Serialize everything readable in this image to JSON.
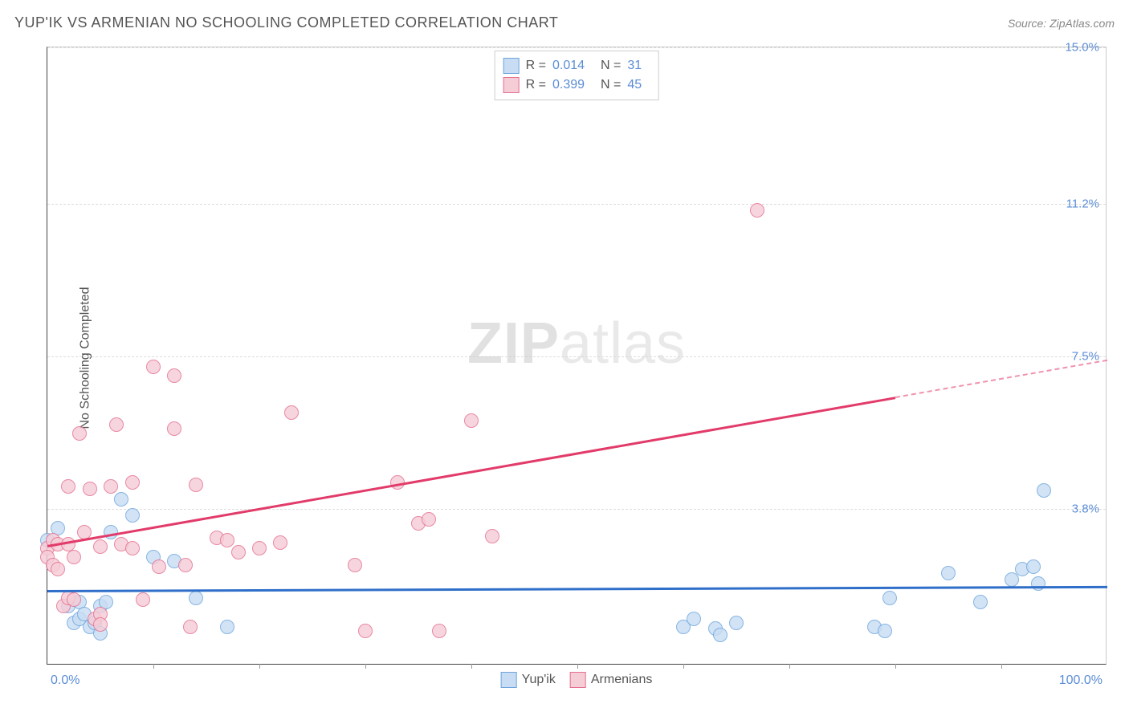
{
  "header": {
    "title": "YUP'IK VS ARMENIAN NO SCHOOLING COMPLETED CORRELATION CHART",
    "source": "Source: ZipAtlas.com"
  },
  "watermark": {
    "bold": "ZIP",
    "light": "atlas"
  },
  "chart": {
    "type": "scatter",
    "y_axis_label": "No Schooling Completed",
    "xlim": [
      0,
      100
    ],
    "ylim": [
      0,
      15
    ],
    "x_ticks": {
      "min_label": "0.0%",
      "max_label": "100.0%",
      "minor_positions_pct": [
        10,
        20,
        30,
        40,
        50,
        60,
        70,
        80,
        90
      ]
    },
    "y_gridlines": [
      {
        "value": 3.8,
        "label": "3.8%"
      },
      {
        "value": 7.5,
        "label": "7.5%"
      },
      {
        "value": 11.2,
        "label": "11.2%"
      },
      {
        "value": 15.0,
        "label": "15.0%"
      }
    ],
    "background_color": "#ffffff",
    "grid_color": "#dddddd",
    "axis_color": "#444444",
    "point_radius": 9,
    "point_border_width": 1.5,
    "series": [
      {
        "name": "Yup'ik",
        "fill": "#c8ddf3",
        "stroke": "#6ea5de",
        "trend": {
          "color": "#2f6fc9",
          "x1": 0,
          "y1": 1.8,
          "x2": 100,
          "y2": 1.9,
          "dashed": false,
          "width": 3
        },
        "points": [
          [
            0,
            3.0
          ],
          [
            1,
            3.3
          ],
          [
            2,
            1.4
          ],
          [
            2.5,
            1.0
          ],
          [
            3,
            1.5
          ],
          [
            3,
            1.1
          ],
          [
            3.5,
            1.2
          ],
          [
            4,
            0.9
          ],
          [
            4.5,
            1.0
          ],
          [
            5,
            1.4
          ],
          [
            5,
            0.75
          ],
          [
            5.5,
            1.5
          ],
          [
            6,
            3.2
          ],
          [
            7,
            4.0
          ],
          [
            8,
            3.6
          ],
          [
            10,
            2.6
          ],
          [
            12,
            2.5
          ],
          [
            14,
            1.6
          ],
          [
            17,
            0.9
          ],
          [
            60,
            0.9
          ],
          [
            61,
            1.1
          ],
          [
            63,
            0.85
          ],
          [
            63.5,
            0.7
          ],
          [
            65,
            1.0
          ],
          [
            78,
            0.9
          ],
          [
            79,
            0.8
          ],
          [
            79.5,
            1.6
          ],
          [
            85,
            2.2
          ],
          [
            88,
            1.5
          ],
          [
            91,
            2.05
          ],
          [
            92,
            2.3
          ],
          [
            93,
            2.35
          ],
          [
            93.5,
            1.95
          ],
          [
            94,
            4.2
          ]
        ]
      },
      {
        "name": "Armenians",
        "fill": "#f5cdd7",
        "stroke": "#e56f8f",
        "trend": {
          "color": "#e23b6a",
          "x1": 0,
          "y1": 2.9,
          "x2": 80,
          "y2": 6.5,
          "dashed_ext_x2": 100,
          "dashed_ext_y2": 7.4,
          "width": 2.5
        },
        "points": [
          [
            0,
            2.8
          ],
          [
            0,
            2.6
          ],
          [
            0.5,
            2.4
          ],
          [
            0.5,
            3.0
          ],
          [
            1,
            2.9
          ],
          [
            1,
            2.3
          ],
          [
            1.5,
            1.4
          ],
          [
            2,
            2.9
          ],
          [
            2,
            4.3
          ],
          [
            2,
            1.6
          ],
          [
            2.5,
            1.55
          ],
          [
            2.5,
            2.6
          ],
          [
            3,
            5.6
          ],
          [
            3.5,
            3.2
          ],
          [
            4,
            4.25
          ],
          [
            4.5,
            1.1
          ],
          [
            5,
            1.2
          ],
          [
            5,
            2.85
          ],
          [
            5,
            0.95
          ],
          [
            6,
            4.3
          ],
          [
            6.5,
            5.8
          ],
          [
            7,
            2.9
          ],
          [
            8,
            4.4
          ],
          [
            8,
            2.8
          ],
          [
            9,
            1.55
          ],
          [
            10,
            7.2
          ],
          [
            10.5,
            2.35
          ],
          [
            12,
            7.0
          ],
          [
            12,
            5.7
          ],
          [
            13,
            2.4
          ],
          [
            13.5,
            0.9
          ],
          [
            14,
            4.35
          ],
          [
            16,
            3.05
          ],
          [
            17,
            3.0
          ],
          [
            18,
            2.7
          ],
          [
            20,
            2.8
          ],
          [
            22,
            2.95
          ],
          [
            23,
            6.1
          ],
          [
            29,
            2.4
          ],
          [
            30,
            0.8
          ],
          [
            33,
            4.4
          ],
          [
            35,
            3.4
          ],
          [
            36,
            3.5
          ],
          [
            37,
            0.8
          ],
          [
            40,
            5.9
          ],
          [
            42,
            3.1
          ],
          [
            67,
            11.0
          ]
        ]
      }
    ],
    "legend_top": [
      {
        "swatch_fill": "#c8ddf3",
        "swatch_stroke": "#6ea5de",
        "r_label": "R =",
        "r_value": "0.014",
        "n_label": "N =",
        "n_value": "31"
      },
      {
        "swatch_fill": "#f5cdd7",
        "swatch_stroke": "#e56f8f",
        "r_label": "R =",
        "r_value": "0.399",
        "n_label": "N =",
        "n_value": "45"
      }
    ],
    "legend_bottom": [
      {
        "swatch_fill": "#c8ddf3",
        "swatch_stroke": "#6ea5de",
        "label": "Yup'ik"
      },
      {
        "swatch_fill": "#f5cdd7",
        "swatch_stroke": "#e56f8f",
        "label": "Armenians"
      }
    ]
  }
}
